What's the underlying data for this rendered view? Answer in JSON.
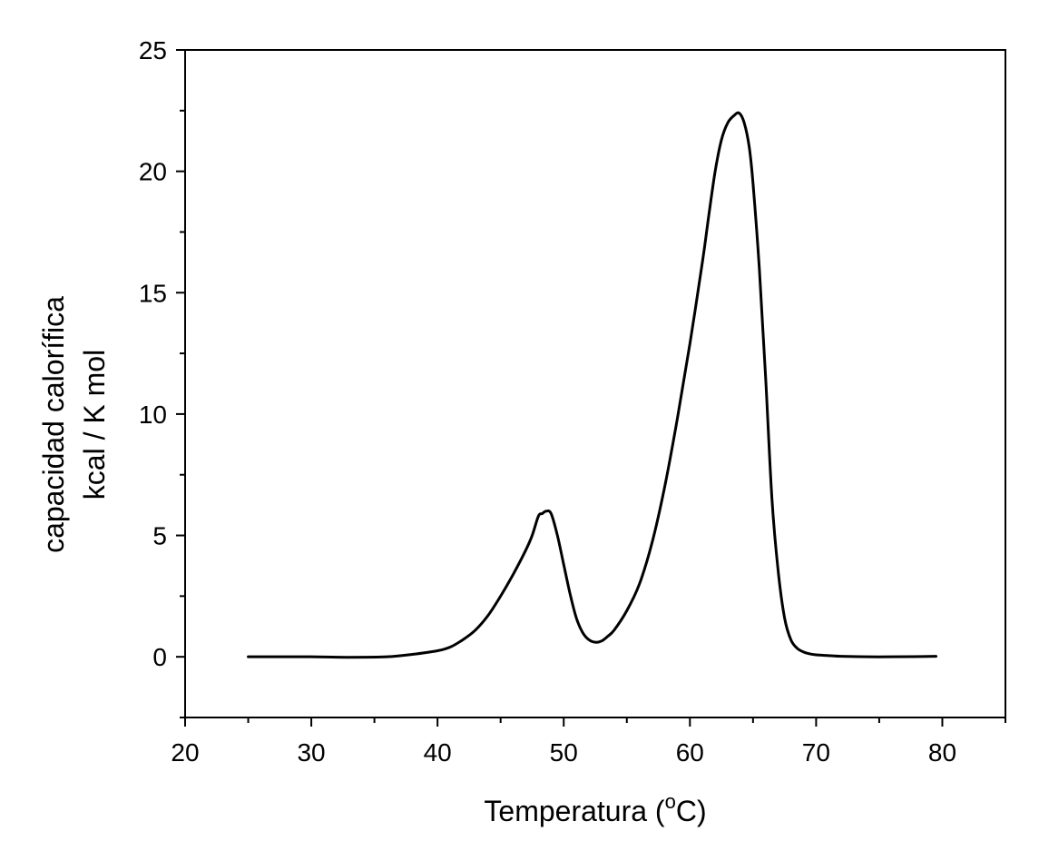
{
  "chart_data": {
    "type": "line",
    "title": "",
    "xlabel": "Temperatura (",
    "xlabel_sup": "o",
    "xlabel_unit": "C)",
    "ylabel_line1": "capacidad calorífica",
    "ylabel_line2": "kcal / K mol",
    "xlim": [
      20,
      85
    ],
    "ylim": [
      -2.5,
      25
    ],
    "x_ticks": [
      20,
      30,
      40,
      50,
      60,
      70,
      80
    ],
    "y_ticks": [
      0,
      5,
      10,
      15,
      20,
      25
    ],
    "grid": false,
    "line_color": "#000000",
    "series": [
      {
        "x": [
          25,
          28,
          30,
          33,
          36,
          38,
          40,
          41,
          42,
          43,
          44,
          45,
          46,
          47,
          47.5,
          48,
          48.3,
          48.6,
          49,
          49.5,
          50,
          50.5,
          51,
          51.5,
          52,
          52.5,
          53,
          53.5,
          54,
          55,
          56,
          57,
          58,
          59,
          60,
          61,
          61.5,
          62,
          62.5,
          63,
          63.5,
          63.9,
          64.3,
          64.7,
          65,
          65.5,
          66,
          66.5,
          67,
          67.5,
          68,
          68.5,
          69,
          69.5,
          70,
          71,
          72,
          74,
          76,
          79.5
        ],
        "y": [
          0,
          0,
          0,
          -0.02,
          0,
          0.1,
          0.25,
          0.4,
          0.7,
          1.1,
          1.7,
          2.5,
          3.4,
          4.4,
          5.0,
          5.8,
          5.9,
          6.0,
          5.9,
          5.0,
          3.8,
          2.6,
          1.6,
          1.0,
          0.7,
          0.6,
          0.65,
          0.85,
          1.1,
          1.9,
          3.0,
          4.7,
          7.0,
          9.8,
          12.9,
          16.3,
          18.2,
          20.0,
          21.3,
          22.0,
          22.3,
          22.4,
          22.0,
          21.0,
          19.5,
          16.0,
          11.5,
          6.5,
          3.5,
          1.6,
          0.7,
          0.35,
          0.2,
          0.12,
          0.08,
          0.05,
          0.02,
          0,
          0,
          0.02
        ]
      }
    ]
  }
}
